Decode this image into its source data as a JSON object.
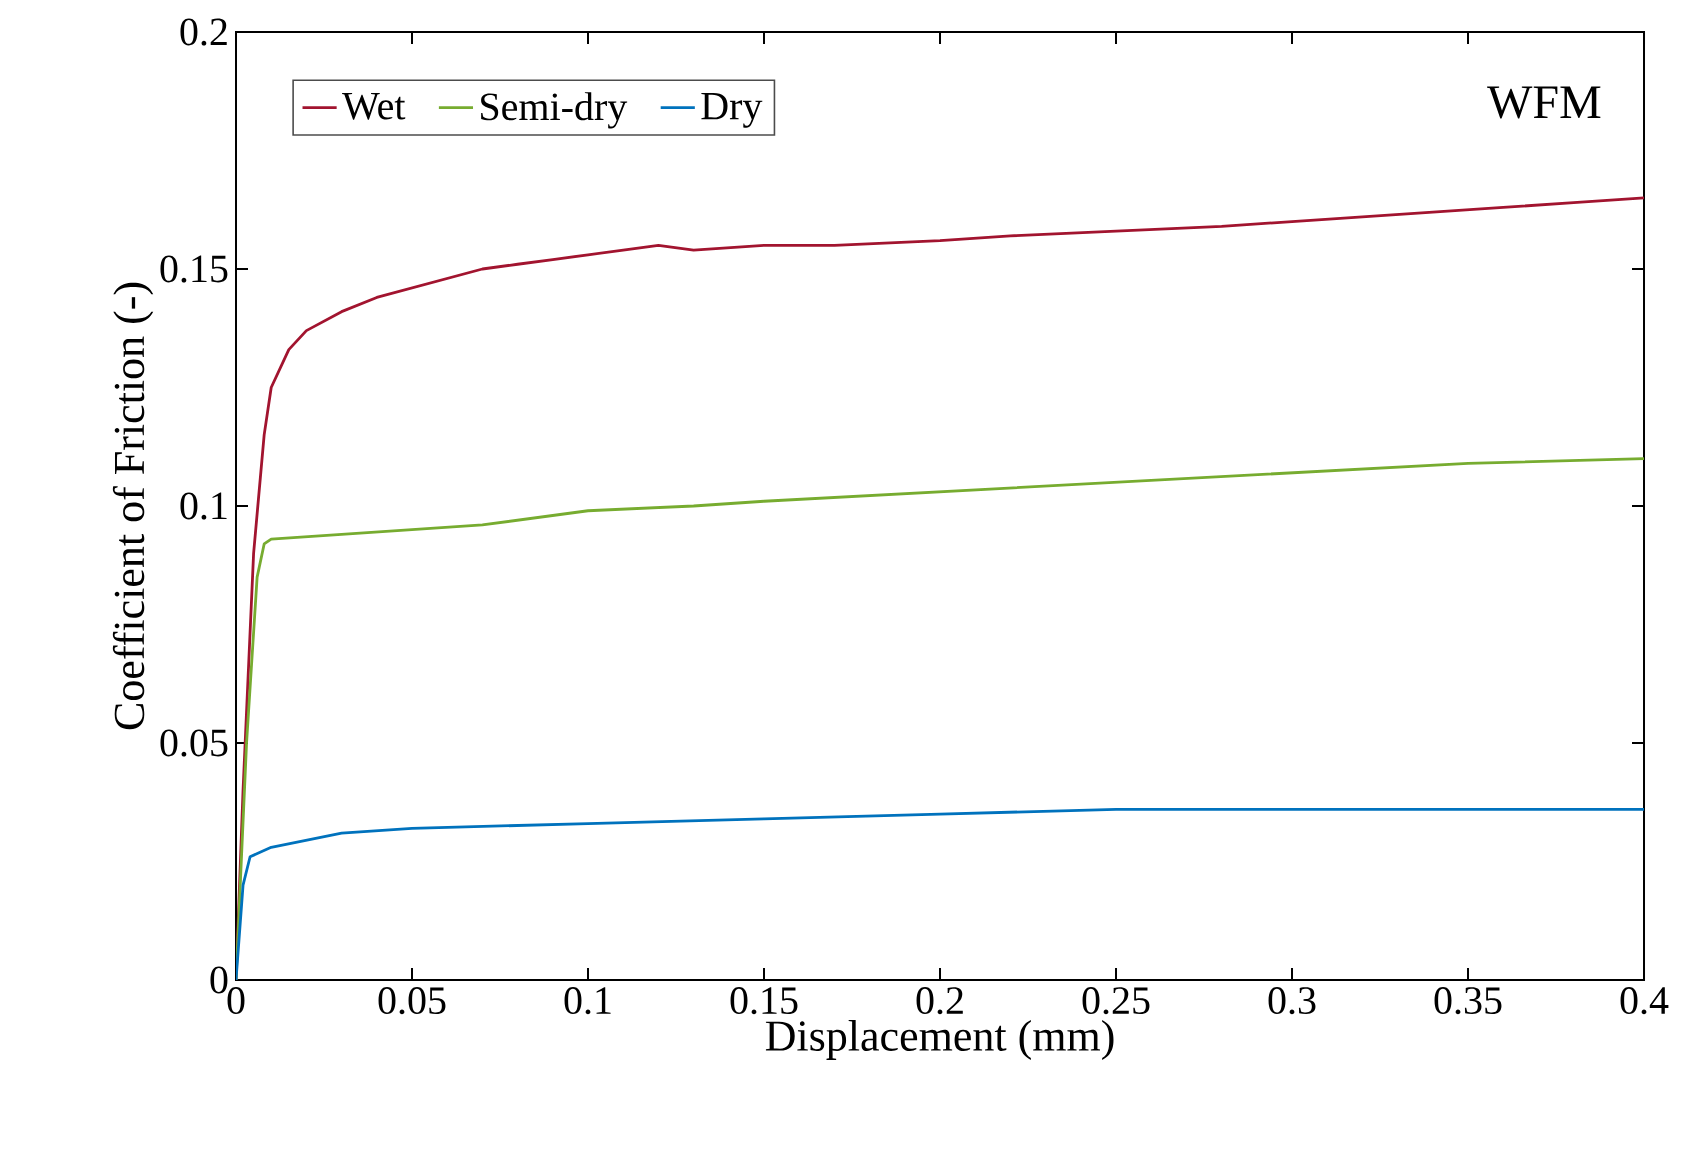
{
  "chart_data": {
    "type": "line",
    "xlabel": "Displacement (mm)",
    "ylabel": "Coefficient of Friction (-)",
    "annotations": [
      "WFM"
    ],
    "xlim": [
      0,
      0.4
    ],
    "ylim": [
      0,
      0.2
    ],
    "xticks": [
      0,
      0.05,
      0.1,
      0.15,
      0.2,
      0.25,
      0.3,
      0.35,
      0.4
    ],
    "yticks": [
      0,
      0.05,
      0.1,
      0.15,
      0.2
    ],
    "grid": false,
    "legend": "top left",
    "marker": "none",
    "line_style": "solid",
    "series": [
      {
        "name": "Wet",
        "color": "#a2142f",
        "x": [
          0,
          0.002,
          0.005,
          0.008,
          0.01,
          0.015,
          0.02,
          0.03,
          0.04,
          0.05,
          0.06,
          0.07,
          0.08,
          0.09,
          0.1,
          0.11,
          0.12,
          0.13,
          0.15,
          0.17,
          0.2,
          0.22,
          0.25,
          0.28,
          0.3,
          0.32,
          0.34,
          0.36,
          0.38,
          0.4
        ],
        "values": [
          0,
          0.04,
          0.09,
          0.115,
          0.125,
          0.133,
          0.137,
          0.141,
          0.144,
          0.146,
          0.148,
          0.15,
          0.151,
          0.152,
          0.153,
          0.154,
          0.155,
          0.154,
          0.155,
          0.155,
          0.156,
          0.157,
          0.158,
          0.159,
          0.16,
          0.161,
          0.162,
          0.163,
          0.164,
          0.165
        ]
      },
      {
        "name": "Semi-dry",
        "color": "#77ac30",
        "x": [
          0,
          0.003,
          0.006,
          0.008,
          0.01,
          0.03,
          0.05,
          0.07,
          0.1,
          0.13,
          0.15,
          0.2,
          0.25,
          0.3,
          0.35,
          0.4
        ],
        "values": [
          0,
          0.05,
          0.085,
          0.092,
          0.093,
          0.094,
          0.095,
          0.096,
          0.099,
          0.1,
          0.101,
          0.103,
          0.105,
          0.107,
          0.109,
          0.11
        ]
      },
      {
        "name": "Dry",
        "color": "#0072bd",
        "x": [
          0,
          0.002,
          0.004,
          0.01,
          0.03,
          0.05,
          0.1,
          0.15,
          0.2,
          0.25,
          0.3,
          0.35,
          0.4
        ],
        "values": [
          0,
          0.02,
          0.026,
          0.028,
          0.031,
          0.032,
          0.033,
          0.034,
          0.035,
          0.036,
          0.036,
          0.036,
          0.036
        ]
      }
    ]
  }
}
